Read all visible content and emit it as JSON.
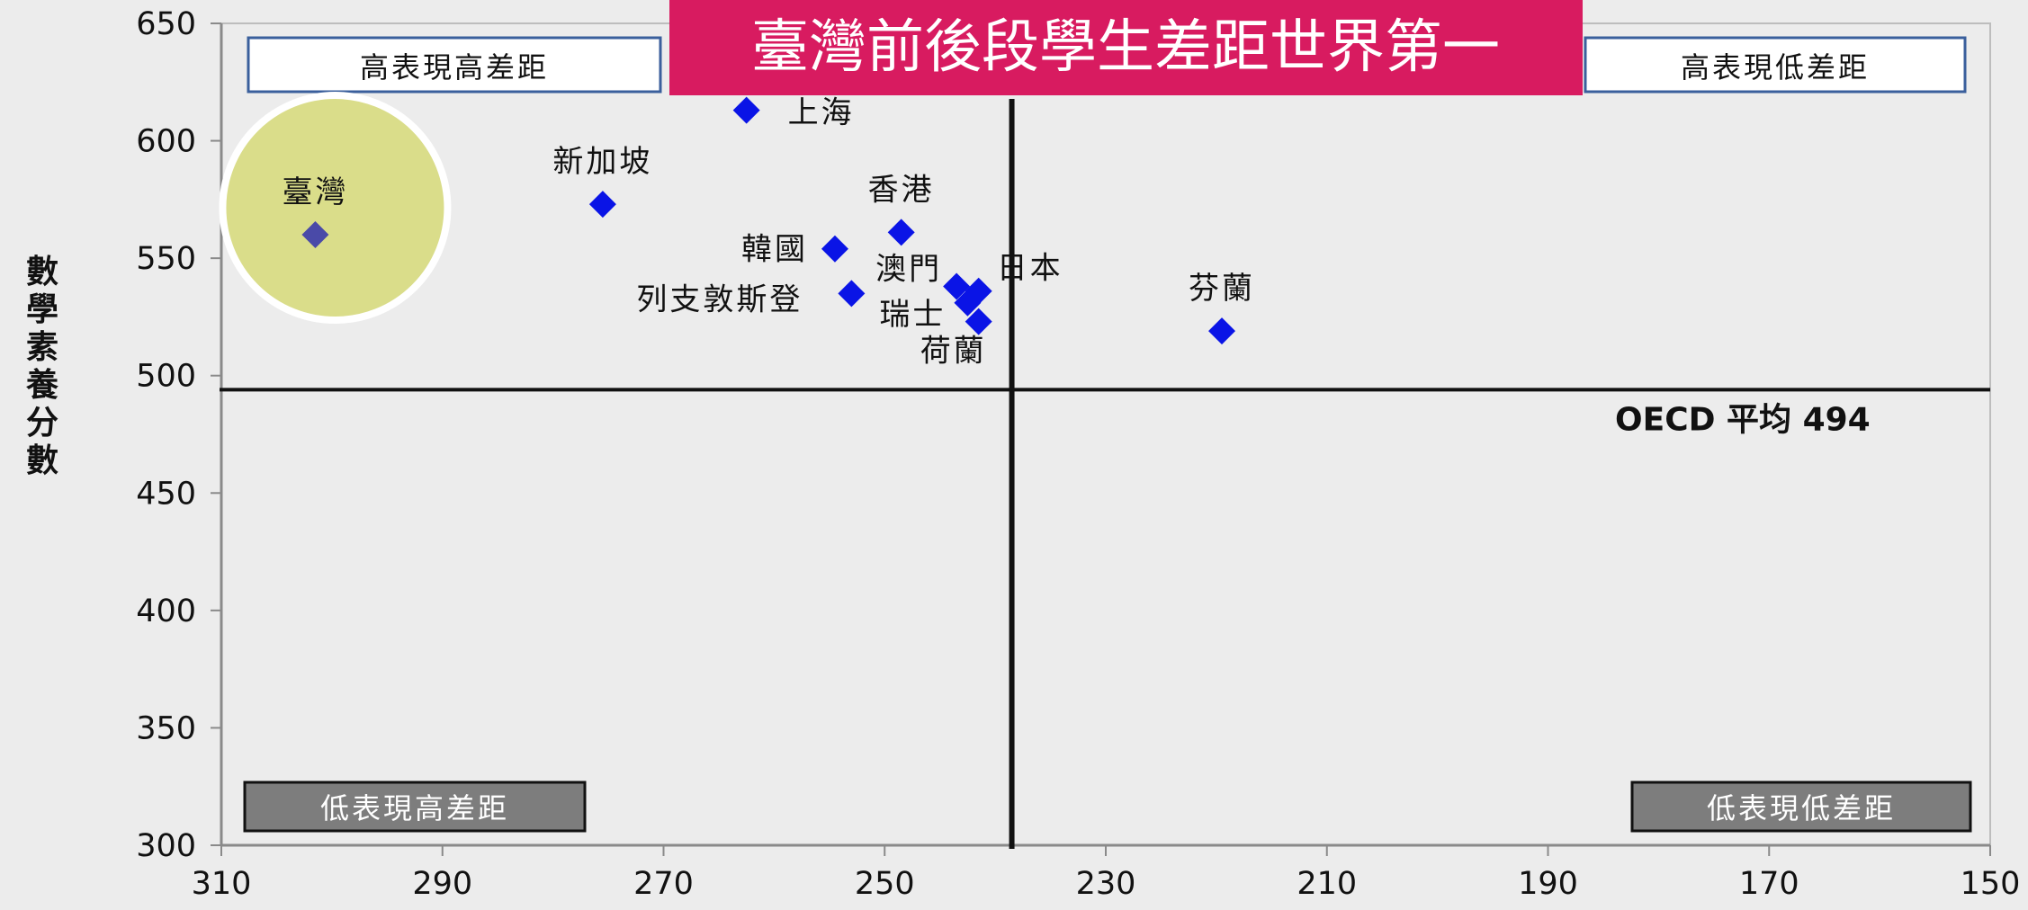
{
  "slide_title": "臺灣前後段學生差距世界第一",
  "quadrants": {
    "top_left": "高表現高差距",
    "top_right": "高表現低差距",
    "bottom_left": "低表現高差距",
    "bottom_right": "低表現低差距"
  },
  "oecd_label": "OECD 平均 494",
  "colors": {
    "title_bg": "#d81b60",
    "marker": "#0a14e6",
    "highlight_marker": "#4a4aa8",
    "highlight_circle": "#dadd8a",
    "highlight_label": "#5c5a14",
    "bottom_box": "#7d7d7d",
    "top_box_border": "#3a5f9c"
  },
  "chart_data": {
    "type": "scatter",
    "title": "",
    "xlabel": "",
    "ylabel": "數學素養分數",
    "xlim": [
      310,
      150
    ],
    "ylim": [
      300,
      650
    ],
    "x_reversed": true,
    "xticks": [
      "310",
      "290",
      "270",
      "250",
      "230",
      "210",
      "190",
      "170",
      "150"
    ],
    "yticks": [
      "300",
      "350",
      "400",
      "450",
      "500",
      "550",
      "600",
      "650"
    ],
    "reference_lines": {
      "vertical_x": 238.5,
      "horizontal_y": 494
    },
    "grid": false,
    "points": [
      {
        "label": "上海",
        "x": 262.5,
        "y": 613,
        "label_pos": "right"
      },
      {
        "label": "新加坡",
        "x": 275.5,
        "y": 573,
        "label_pos": "above"
      },
      {
        "label": "臺灣",
        "x": 301.5,
        "y": 560,
        "label_pos": "above",
        "highlight": true
      },
      {
        "label": "香港",
        "x": 248.5,
        "y": 561,
        "label_pos": "above"
      },
      {
        "label": "韓國",
        "x": 254.5,
        "y": 554,
        "label_pos": "left"
      },
      {
        "label": "日本",
        "x": 241.5,
        "y": 536,
        "label_pos": "right"
      },
      {
        "label": "澳門",
        "x": 243.5,
        "y": 538,
        "label_pos": "left"
      },
      {
        "label": "列支敦斯登",
        "x": 253,
        "y": 535,
        "label_pos": "left"
      },
      {
        "label": "瑞士",
        "x": 242.5,
        "y": 531,
        "label_pos": "left"
      },
      {
        "label": "荷蘭",
        "x": 241.5,
        "y": 523,
        "label_pos": "below"
      },
      {
        "label": "芬蘭",
        "x": 219.5,
        "y": 519,
        "label_pos": "above"
      }
    ]
  }
}
